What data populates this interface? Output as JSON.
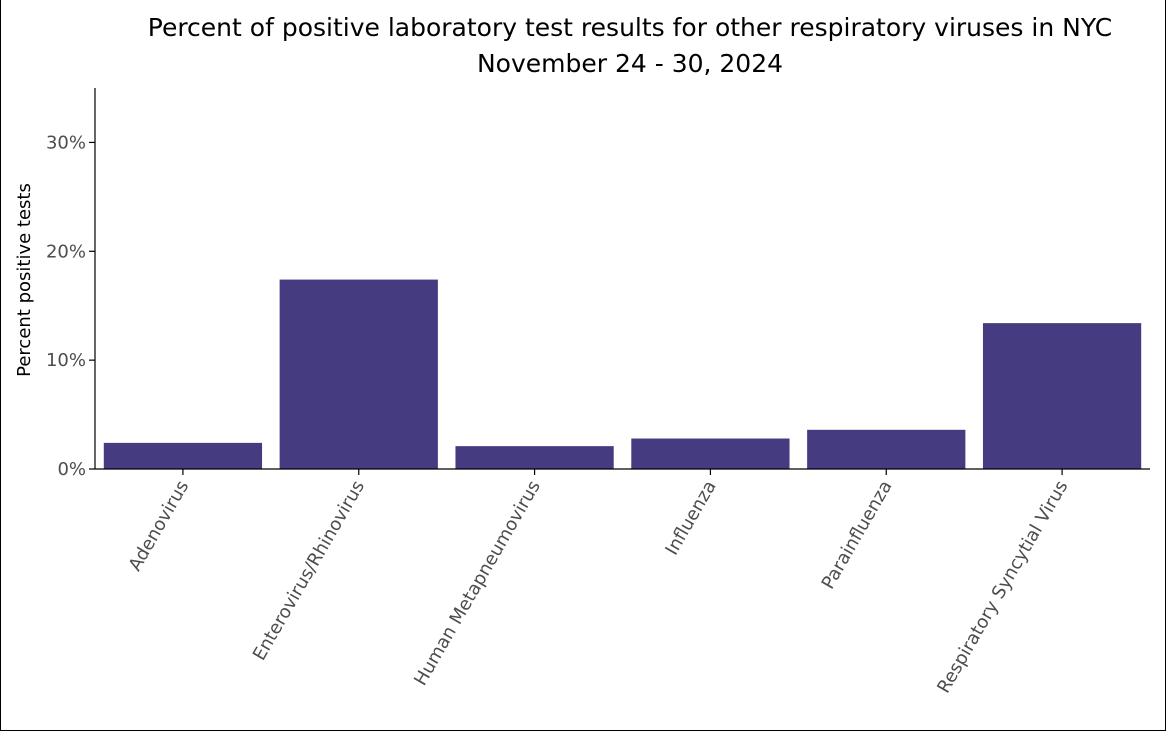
{
  "chart_data": {
    "type": "bar",
    "title": [
      "Percent of positive laboratory test results for other respiratory viruses in NYC",
      "November 24 - 30, 2024"
    ],
    "xlabel": "",
    "ylabel": "Percent positive tests",
    "categories": [
      "Adenovirus",
      "Enterovirus/Rhinovirus",
      "Human Metapneumovirus",
      "Influenza",
      "Parainfluenza",
      "Respiratory Syncytial Virus"
    ],
    "values": [
      2.4,
      17.4,
      2.1,
      2.8,
      3.6,
      13.4
    ],
    "ylim": [
      0,
      35
    ],
    "yticks": [
      0,
      10,
      20,
      30
    ],
    "ytick_labels": [
      "0%",
      "10%",
      "20%",
      "30%"
    ],
    "grid": false,
    "bar_color": "#453b80",
    "axis_color": "#000000",
    "tick_label_color": "#4d4d4d"
  }
}
